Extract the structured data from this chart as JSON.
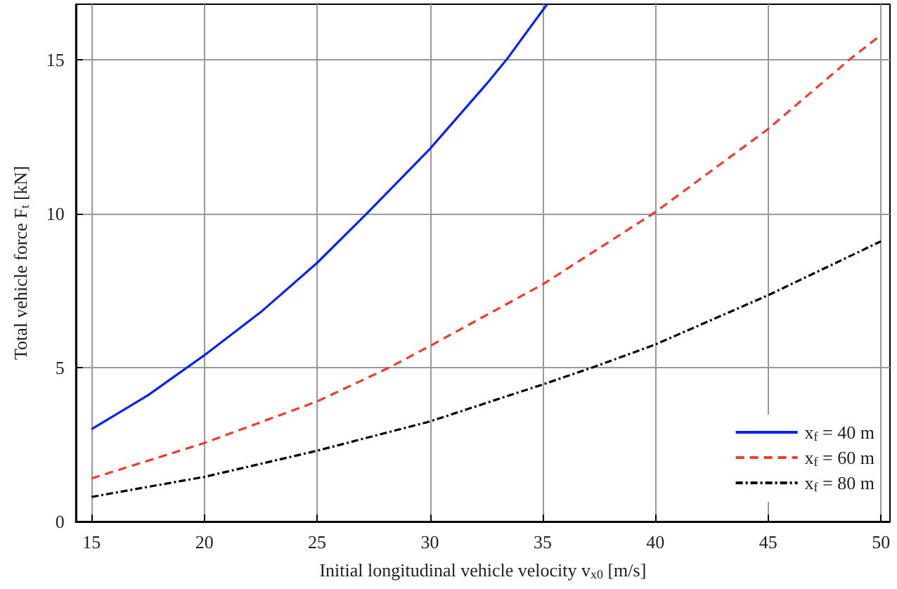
{
  "chart_data": {
    "type": "line",
    "xlabel": "Initial longitudinal vehicle velocity v$_{x0}$ [m/s]",
    "ylabel": "Total vehicle force F$_{t}$ [kN]",
    "xlim": [
      14.3,
      50.4
    ],
    "ylim": [
      0,
      16.8
    ],
    "xticks": [
      15,
      20,
      25,
      30,
      35,
      40,
      45,
      50
    ],
    "yticks": [
      0,
      5,
      10,
      15
    ],
    "grid": true,
    "legend": "bottom right",
    "marker": "none",
    "series": [
      {
        "name": "x$_{f}$ = 40 m",
        "color": "#0a22f5",
        "line_style": "solid",
        "x": [
          15,
          17.5,
          20,
          22.5,
          25,
          27.2,
          30,
          32.5,
          33.4,
          35.2
        ],
        "values": [
          3.0,
          4.1,
          5.4,
          6.8,
          8.4,
          10.0,
          12.1,
          14.2,
          15.0,
          16.8
        ]
      },
      {
        "name": "x$_{f}$ = 60 m",
        "color": "#f5392a",
        "line_style": "dashed",
        "x": [
          15,
          20,
          25,
          28.2,
          30,
          35,
          40,
          45,
          48.6,
          50
        ],
        "values": [
          1.4,
          2.55,
          3.9,
          5.0,
          5.7,
          7.7,
          10.05,
          12.75,
          15.0,
          15.8
        ]
      },
      {
        "name": "x$_{f}$ = 80 m",
        "color": "#000000",
        "line_style": "dotted",
        "x": [
          15,
          20,
          25,
          30,
          35,
          37.2,
          40,
          45,
          50
        ],
        "values": [
          0.8,
          1.45,
          2.3,
          3.25,
          4.45,
          5.0,
          5.75,
          7.35,
          9.1
        ]
      }
    ]
  }
}
